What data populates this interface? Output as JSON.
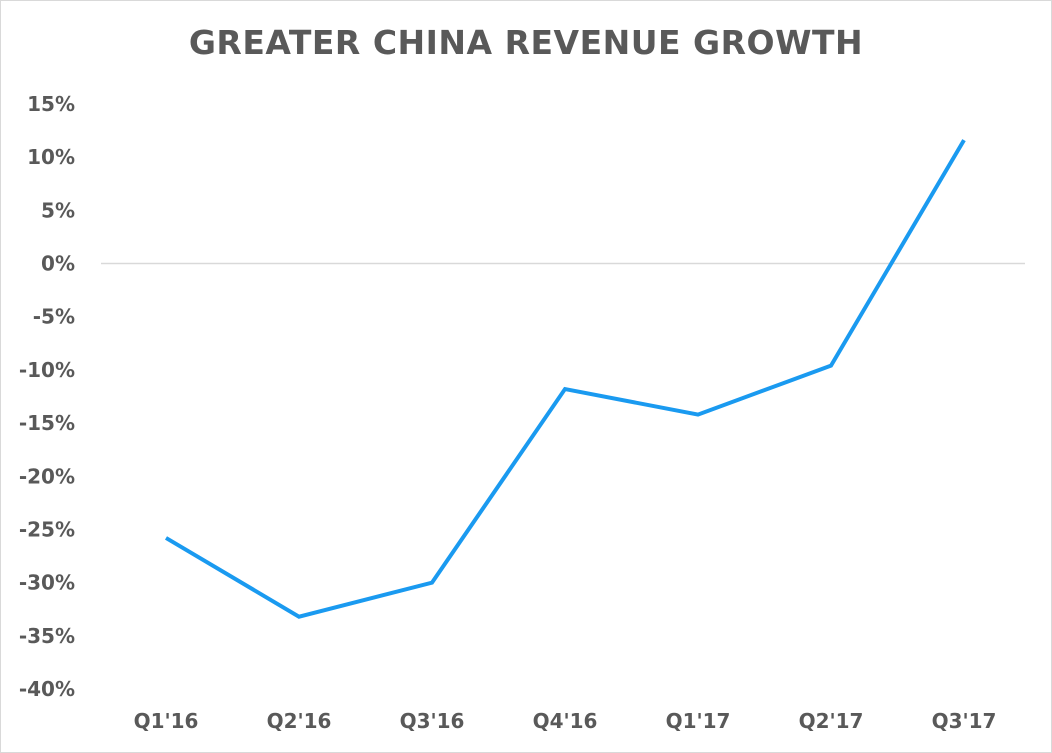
{
  "chart_data": {
    "type": "line",
    "title": "GREATER CHINA REVENUE GROWTH",
    "xlabel": "",
    "ylabel": "",
    "categories": [
      "Q1'16",
      "Q2'16",
      "Q3'16",
      "Q4'16",
      "Q1'17",
      "Q2'17",
      "Q3'17"
    ],
    "series": [
      {
        "values": [
          -25.8,
          -33.2,
          -30.0,
          -11.8,
          -14.2,
          -9.6,
          11.6
        ],
        "color": "#1a9af0"
      }
    ],
    "ylim": [
      -40,
      15
    ],
    "yticks": [
      15,
      10,
      5,
      0,
      -5,
      -10,
      -15,
      -20,
      -25,
      -30,
      -35,
      -40
    ],
    "ytick_labels": [
      "15%",
      "10%",
      "5%",
      "0%",
      "-5%",
      "-10%",
      "-15%",
      "-20%",
      "-25%",
      "-30%",
      "-35%",
      "-40%"
    ],
    "grid": false,
    "zero_line": true,
    "legend": "none"
  }
}
